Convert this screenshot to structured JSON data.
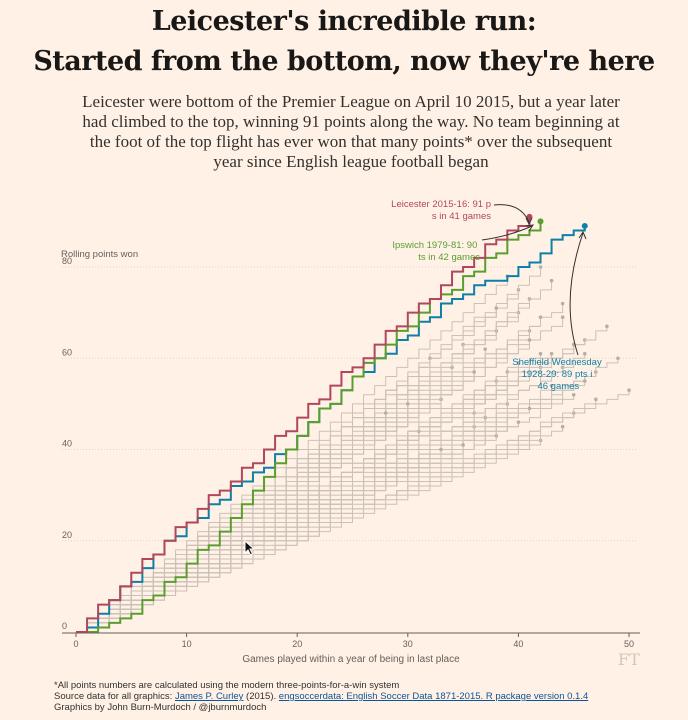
{
  "header": {
    "title_line1": "Leicester's incredible run:",
    "title_line2": "Started from the bottom, now they're here",
    "subtitle": "Leicester were bottom of the Premier League on April 10 2015, but a year later had climbed to the top, winning 91 points along the way. No team beginning at the foot of the top flight has ever won that many points* over the subsequent year since English league football began"
  },
  "footer": {
    "note": "*All points numbers are calculated using the modern three-points-for-a-win system",
    "source_prefix": "Source data for all graphics: ",
    "source_author": "James P. Curley",
    "source_year": " (2015). ",
    "source_link": "engsoccerdata: English Soccer Data 1871-2015. R package version 0.1.4",
    "credit": "Graphics by John Burn-Murdoch / @jburnmurdoch",
    "logo": "FT"
  },
  "colors": {
    "leicester": "#b0485c",
    "ipswich": "#5a9e2f",
    "sheffield": "#0f7fa8",
    "grey_line": "#cbc1b8",
    "grey_dot": "#b8aea6",
    "axis": "#66605c"
  },
  "chart_data": {
    "type": "line",
    "xlabel": "Games played within a year of being in last place",
    "ylabel": "Rolling points won",
    "xlim": [
      0,
      51
    ],
    "ylim": [
      0,
      82
    ],
    "xticks": [
      0,
      10,
      20,
      30,
      40,
      50
    ],
    "yticks": [
      0,
      20,
      40,
      60,
      80
    ],
    "grid": "horizontal",
    "series": [
      {
        "name": "Leicester 2015-16",
        "color_key": "leicester",
        "highlight": true,
        "points": [
          [
            0,
            0
          ],
          [
            1,
            3
          ],
          [
            2,
            6
          ],
          [
            3,
            7
          ],
          [
            4,
            10
          ],
          [
            5,
            13
          ],
          [
            6,
            16
          ],
          [
            7,
            17
          ],
          [
            8,
            20
          ],
          [
            9,
            23
          ],
          [
            10,
            24
          ],
          [
            11,
            27
          ],
          [
            12,
            30
          ],
          [
            13,
            31
          ],
          [
            14,
            33
          ],
          [
            15,
            36
          ],
          [
            16,
            37
          ],
          [
            17,
            40
          ],
          [
            18,
            43
          ],
          [
            19,
            44
          ],
          [
            20,
            47
          ],
          [
            21,
            50
          ],
          [
            22,
            51
          ],
          [
            23,
            54
          ],
          [
            24,
            57
          ],
          [
            25,
            58
          ],
          [
            26,
            60
          ],
          [
            27,
            63
          ],
          [
            28,
            66
          ],
          [
            29,
            67
          ],
          [
            30,
            70
          ],
          [
            31,
            72
          ],
          [
            32,
            73
          ],
          [
            33,
            76
          ],
          [
            34,
            79
          ],
          [
            35,
            80
          ],
          [
            36,
            82
          ],
          [
            37,
            85
          ],
          [
            38,
            86
          ],
          [
            39,
            88
          ],
          [
            40,
            89
          ],
          [
            41,
            91
          ]
        ],
        "annotation": "Leicester 2015-16: 91 pts in 41 games"
      },
      {
        "name": "Ipswich 1979-81",
        "color_key": "ipswich",
        "highlight": true,
        "points": [
          [
            0,
            0
          ],
          [
            1,
            0
          ],
          [
            2,
            1
          ],
          [
            3,
            2
          ],
          [
            4,
            3
          ],
          [
            5,
            4
          ],
          [
            6,
            7
          ],
          [
            7,
            8
          ],
          [
            8,
            11
          ],
          [
            9,
            12
          ],
          [
            10,
            15
          ],
          [
            11,
            18
          ],
          [
            12,
            19
          ],
          [
            13,
            22
          ],
          [
            14,
            25
          ],
          [
            15,
            28
          ],
          [
            16,
            31
          ],
          [
            17,
            34
          ],
          [
            18,
            37
          ],
          [
            19,
            40
          ],
          [
            20,
            43
          ],
          [
            21,
            46
          ],
          [
            22,
            49
          ],
          [
            23,
            50
          ],
          [
            24,
            53
          ],
          [
            25,
            56
          ],
          [
            26,
            59
          ],
          [
            27,
            60
          ],
          [
            28,
            63
          ],
          [
            29,
            66
          ],
          [
            30,
            67
          ],
          [
            31,
            70
          ],
          [
            32,
            73
          ],
          [
            33,
            74
          ],
          [
            34,
            75
          ],
          [
            35,
            78
          ],
          [
            36,
            79
          ],
          [
            37,
            82
          ],
          [
            38,
            83
          ],
          [
            39,
            86
          ],
          [
            40,
            87
          ],
          [
            41,
            88
          ],
          [
            42,
            90
          ]
        ],
        "annotation": "Ipswich 1979-81: 90 pts in 42 games"
      },
      {
        "name": "Sheffield Wednesday 1928-29",
        "color_key": "sheffield",
        "highlight": true,
        "points": [
          [
            0,
            0
          ],
          [
            1,
            1
          ],
          [
            2,
            4
          ],
          [
            3,
            7
          ],
          [
            4,
            10
          ],
          [
            5,
            11
          ],
          [
            6,
            14
          ],
          [
            7,
            17
          ],
          [
            8,
            20
          ],
          [
            9,
            21
          ],
          [
            10,
            24
          ],
          [
            11,
            25
          ],
          [
            12,
            28
          ],
          [
            13,
            29
          ],
          [
            14,
            32
          ],
          [
            15,
            33
          ],
          [
            16,
            35
          ],
          [
            17,
            36
          ],
          [
            18,
            39
          ],
          [
            19,
            40
          ],
          [
            20,
            43
          ],
          [
            21,
            46
          ],
          [
            22,
            49
          ],
          [
            23,
            50
          ],
          [
            24,
            53
          ],
          [
            25,
            56
          ],
          [
            26,
            57
          ],
          [
            27,
            60
          ],
          [
            28,
            61
          ],
          [
            29,
            64
          ],
          [
            30,
            65
          ],
          [
            31,
            68
          ],
          [
            32,
            69
          ],
          [
            33,
            72
          ],
          [
            34,
            73
          ],
          [
            35,
            74
          ],
          [
            36,
            76
          ],
          [
            37,
            77
          ],
          [
            38,
            77
          ],
          [
            39,
            78
          ],
          [
            40,
            80
          ],
          [
            41,
            81
          ],
          [
            42,
            83
          ],
          [
            43,
            86
          ],
          [
            44,
            87
          ],
          [
            45,
            88
          ],
          [
            46,
            89
          ]
        ],
        "annotation": "Sheffield Wednesday 1928-29: 89 pts in 46 games"
      }
    ],
    "background_series": [
      [
        36,
        48
      ],
      [
        37,
        62
      ],
      [
        38,
        55
      ],
      [
        39,
        78
      ],
      [
        40,
        70
      ],
      [
        41,
        66
      ],
      [
        42,
        58
      ],
      [
        43,
        61
      ],
      [
        44,
        72
      ],
      [
        45,
        52
      ],
      [
        46,
        64
      ],
      [
        47,
        57
      ],
      [
        49,
        60
      ],
      [
        38,
        43
      ],
      [
        40,
        75
      ],
      [
        42,
        80
      ],
      [
        44,
        69
      ],
      [
        46,
        55
      ],
      [
        48,
        67
      ],
      [
        50,
        53
      ],
      [
        34,
        58
      ],
      [
        35,
        63
      ],
      [
        36,
        45
      ],
      [
        38,
        66
      ],
      [
        39,
        50
      ],
      [
        40,
        59
      ],
      [
        41,
        73
      ],
      [
        43,
        54
      ],
      [
        45,
        63
      ],
      [
        42,
        42
      ],
      [
        41,
        49
      ],
      [
        39,
        57
      ],
      [
        37,
        47
      ],
      [
        33,
        51
      ],
      [
        32,
        60
      ],
      [
        44,
        45
      ],
      [
        43,
        77
      ],
      [
        45,
        48
      ],
      [
        47,
        51
      ],
      [
        30,
        50
      ],
      [
        31,
        44
      ],
      [
        28,
        48
      ],
      [
        35,
        41
      ],
      [
        33,
        40
      ],
      [
        40,
        46
      ],
      [
        41,
        64
      ],
      [
        42,
        69
      ],
      [
        44,
        58
      ],
      [
        46,
        61
      ],
      [
        42,
        61
      ],
      [
        38,
        71
      ],
      [
        36,
        57
      ]
    ]
  }
}
